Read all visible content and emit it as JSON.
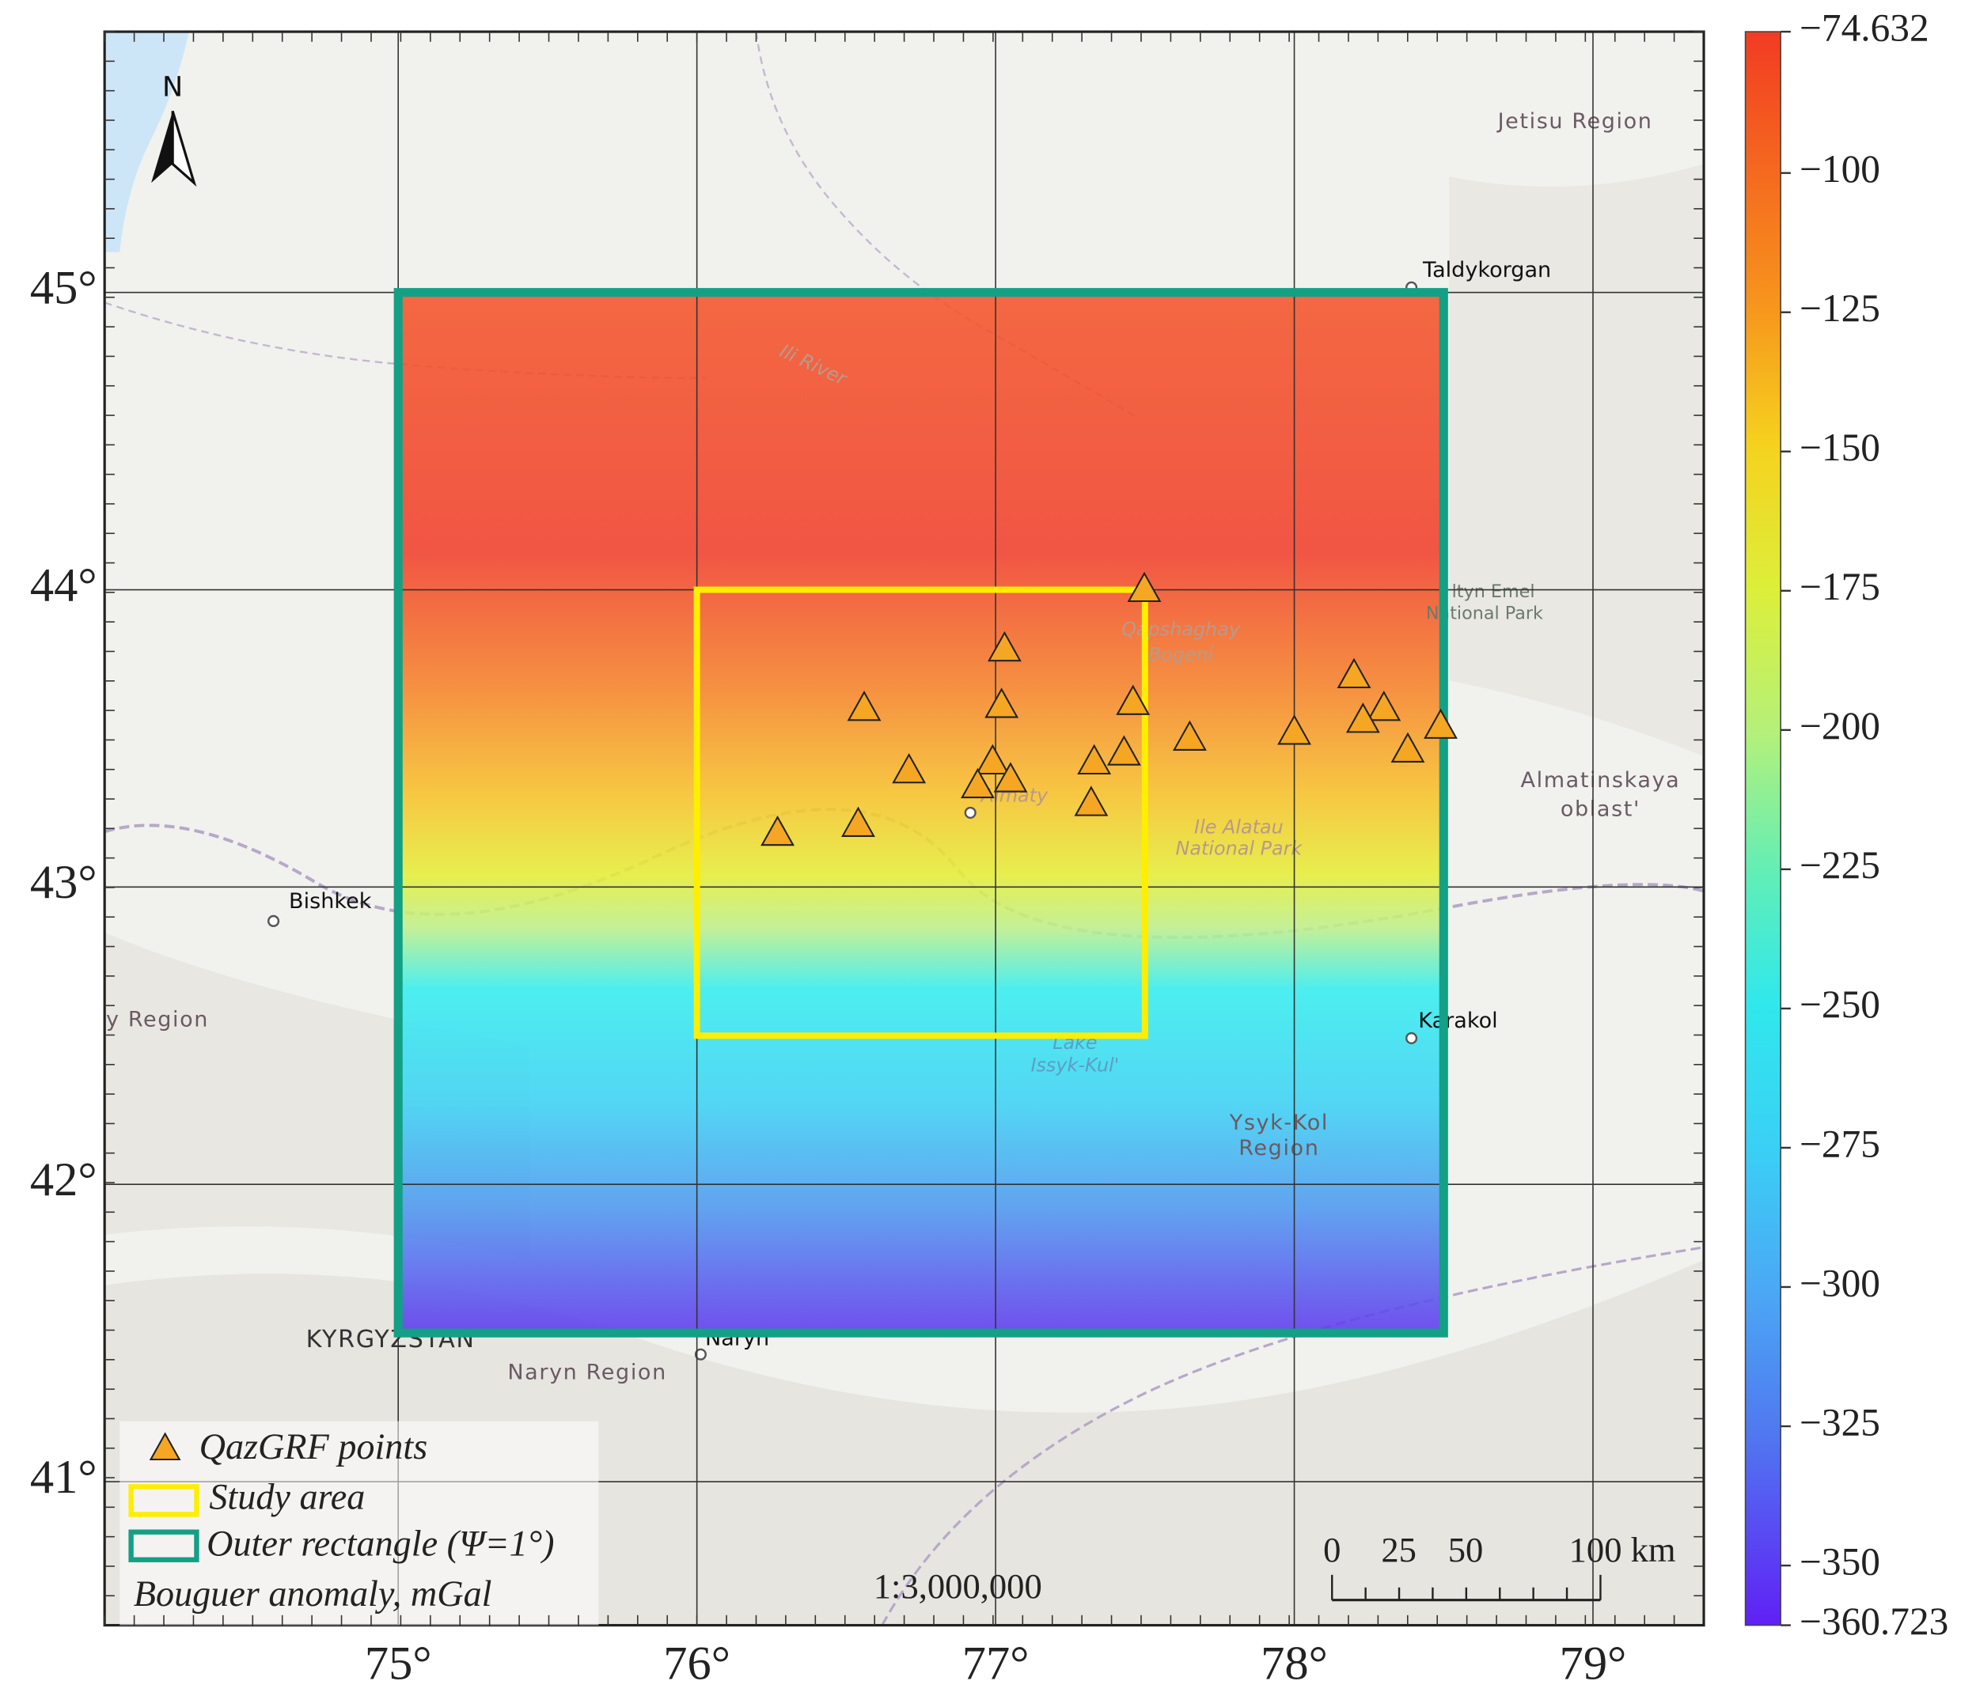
{
  "map": {
    "xlim": [
      74.017,
      79.371
    ],
    "ylim": [
      40.517,
      45.877
    ],
    "xticks": [
      {
        "value": 75,
        "label": "75°"
      },
      {
        "value": 76,
        "label": "76°"
      },
      {
        "value": 77,
        "label": "77°"
      },
      {
        "value": 78,
        "label": "78°"
      },
      {
        "value": 79,
        "label": "79°"
      }
    ],
    "yticks": [
      {
        "value": 41,
        "label": "41°"
      },
      {
        "value": 42,
        "label": "42°"
      },
      {
        "value": 43,
        "label": "43°"
      },
      {
        "value": 44,
        "label": "44°"
      },
      {
        "value": 45,
        "label": "45°"
      }
    ],
    "grid": true,
    "north": "N",
    "outer_rectangle": {
      "lon": [
        75,
        78.5
      ],
      "lat": [
        41.5,
        45
      ],
      "color": "#13a085"
    },
    "study_area": {
      "lon": [
        76,
        77.5
      ],
      "lat": [
        42.5,
        44
      ],
      "color": "#ffee00"
    },
    "points": {
      "color": "#f5a623",
      "lon": [
        77.498,
        77.03,
        76.56,
        77.02,
        77.46,
        76.71,
        76.99,
        76.94,
        77.05,
        77.33,
        77.43,
        77.32,
        77.65,
        78.0,
        76.27,
        76.54,
        78.2,
        78.3,
        78.23,
        78.38,
        78.49
      ],
      "lat": [
        44.0,
        43.8,
        43.6,
        43.61,
        43.62,
        43.39,
        43.42,
        43.34,
        43.36,
        43.42,
        43.45,
        43.28,
        43.5,
        43.52,
        43.18,
        43.21,
        43.71,
        43.6,
        43.56,
        43.46,
        43.54
      ]
    },
    "places": [
      "Jetisu Region",
      "Taldykorgan",
      "ltyn Emel",
      "National Park",
      "Almatinskaya",
      "oblast'",
      "Bishkek",
      "y Region",
      "Karakol",
      "Ysyk-Kol",
      "Region",
      "KYRGYZSTAN",
      "Naryn Region",
      "Naryn",
      "Almaty",
      "Ile Alatau",
      "National Park",
      "Qapshaghay",
      "Bogeni",
      "Lake",
      "Issyk-Kul'",
      "Ili River"
    ],
    "legend": [
      "QazGRF points",
      "Study area",
      "Outer rectangle (Ψ=1°)",
      "Bouguer anomaly, mGal"
    ],
    "scale_ratio": "1:3,000,000",
    "scale_bar": [
      "0",
      "25",
      "50",
      "100 km"
    ]
  },
  "colorbar": {
    "lim": [
      -360.723,
      -74.632
    ],
    "ticks": [
      {
        "value": -74.632,
        "label": "−74.632"
      },
      {
        "value": -100,
        "label": "−100"
      },
      {
        "value": -125,
        "label": "−125"
      },
      {
        "value": -150,
        "label": "−150"
      },
      {
        "value": -175,
        "label": "−175"
      },
      {
        "value": -200,
        "label": "−200"
      },
      {
        "value": -225,
        "label": "−225"
      },
      {
        "value": -250,
        "label": "−250"
      },
      {
        "value": -275,
        "label": "−275"
      },
      {
        "value": -300,
        "label": "−300"
      },
      {
        "value": -325,
        "label": "−325"
      },
      {
        "value": -350,
        "label": "−350"
      },
      {
        "value": -360.723,
        "label": "−360.723"
      }
    ]
  }
}
